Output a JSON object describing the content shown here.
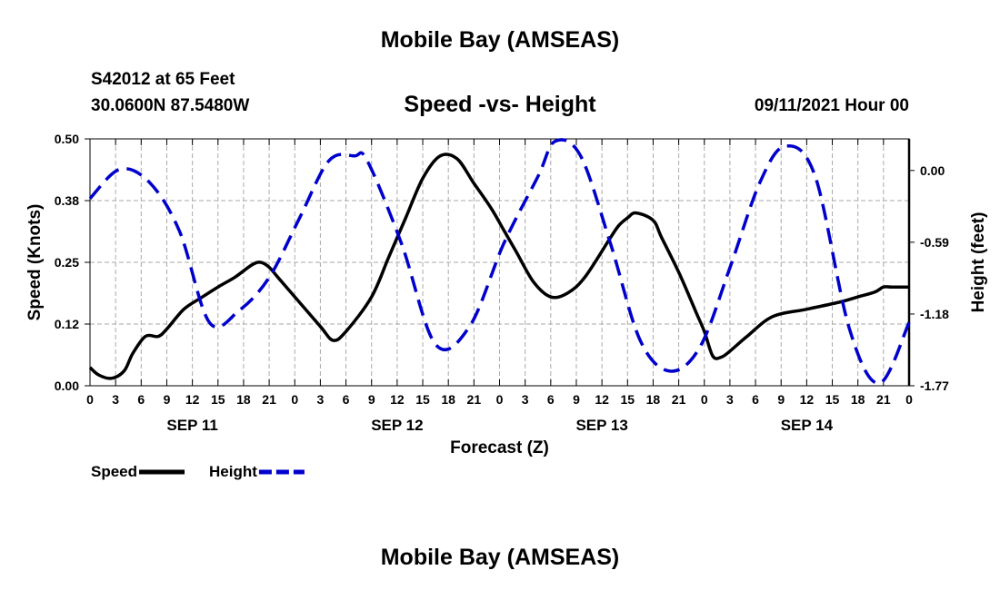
{
  "page": {
    "title_top": "Mobile Bay (AMSEAS)",
    "title_bottom": "Mobile Bay (AMSEAS)",
    "station": "S42012 at 65 Feet",
    "coords": "30.0600N  87.5480W",
    "subtitle": "Speed -vs- Height",
    "datetime": "09/11/2021 Hour 00"
  },
  "chart_data": {
    "type": "line",
    "title": "Speed -vs- Height",
    "xlabel": "Forecast (Z)",
    "ylabel": "Speed (Knots)",
    "y2label": "Height (feet)",
    "xlim": [
      0,
      96
    ],
    "ylim": [
      0,
      0.5
    ],
    "y2lim": [
      -1.77,
      0.26
    ],
    "grid": true,
    "x_ticks": [
      0,
      3,
      6,
      9,
      12,
      15,
      18,
      21,
      24,
      27,
      30,
      33,
      36,
      39,
      42,
      45,
      48,
      51,
      54,
      57,
      60,
      63,
      66,
      69,
      72,
      75,
      78,
      81,
      84,
      87,
      90,
      93,
      96
    ],
    "x_tick_labels": [
      "0",
      "3",
      "6",
      "9",
      "12",
      "15",
      "18",
      "21",
      "0",
      "3",
      "6",
      "9",
      "12",
      "15",
      "18",
      "21",
      "0",
      "3",
      "6",
      "9",
      "12",
      "15",
      "18",
      "21",
      "0",
      "3",
      "6",
      "9",
      "12",
      "15",
      "18",
      "21",
      "0"
    ],
    "date_labels": [
      {
        "hour": 12,
        "label": "SEP 11"
      },
      {
        "hour": 36,
        "label": "SEP 12"
      },
      {
        "hour": 60,
        "label": "SEP 13"
      },
      {
        "hour": 84,
        "label": "SEP 14"
      }
    ],
    "y_ticks": [
      0,
      0.125,
      0.25,
      0.375,
      0.5
    ],
    "y_tick_labels": [
      "0.00",
      "0.12",
      "0.25",
      "0.38",
      "0.50"
    ],
    "y2_ticks": [
      0.0,
      -0.59,
      -1.18,
      -1.77
    ],
    "y2_tick_labels": [
      "0.00",
      "-0.59",
      "-1.18",
      "-1.77"
    ],
    "legend": [
      {
        "label": "Speed",
        "color": "#000000",
        "style": "solid"
      },
      {
        "label": "Height",
        "color": "#0000cc",
        "style": "dashed"
      }
    ],
    "series": [
      {
        "name": "Speed",
        "axis": "left",
        "color": "#000000",
        "style": "solid",
        "x": [
          0,
          1,
          2.5,
          4,
          5,
          6.5,
          8,
          9,
          11,
          13,
          15,
          17,
          19,
          20,
          21,
          22,
          24,
          27,
          28.5,
          30,
          33,
          35,
          37,
          39,
          41,
          43,
          45,
          47,
          48.5,
          50,
          52,
          54,
          56,
          58,
          61,
          62,
          63,
          64,
          66,
          67,
          69,
          71,
          72,
          73,
          74,
          75,
          77,
          80,
          84,
          88,
          90,
          92,
          93,
          94,
          96
        ],
        "y": [
          0.037,
          0.022,
          0.015,
          0.03,
          0.065,
          0.1,
          0.1,
          0.115,
          0.155,
          0.178,
          0.2,
          0.22,
          0.245,
          0.25,
          0.24,
          0.22,
          0.18,
          0.12,
          0.092,
          0.11,
          0.18,
          0.26,
          0.34,
          0.42,
          0.465,
          0.46,
          0.41,
          0.36,
          0.315,
          0.27,
          0.21,
          0.18,
          0.188,
          0.22,
          0.3,
          0.325,
          0.34,
          0.35,
          0.335,
          0.3,
          0.23,
          0.15,
          0.11,
          0.06,
          0.058,
          0.07,
          0.1,
          0.14,
          0.155,
          0.17,
          0.18,
          0.19,
          0.2,
          0.2,
          0.2
        ]
      },
      {
        "name": "Height",
        "axis": "right",
        "color": "#0000cc",
        "style": "dashed",
        "x": [
          0,
          3.5,
          7,
          10.5,
          14,
          17.5,
          21,
          24.5,
          28,
          31,
          32.5,
          36.5,
          40.5,
          44.5,
          48.5,
          52.5,
          54.5,
          57.5,
          61,
          64.5,
          68,
          71.5,
          75,
          78.5,
          81.5,
          85,
          89,
          92.5,
          96
        ],
        "y": [
          -0.23,
          0.01,
          -0.1,
          -0.5,
          -1.25,
          -1.15,
          -0.88,
          -0.4,
          0.08,
          0.12,
          0.08,
          -0.6,
          -1.43,
          -1.28,
          -0.6,
          -0.05,
          0.24,
          0.12,
          -0.6,
          -1.4,
          -1.65,
          -1.45,
          -0.8,
          -0.1,
          0.2,
          -0.05,
          -1.3,
          -1.75,
          -1.25
        ]
      }
    ]
  }
}
